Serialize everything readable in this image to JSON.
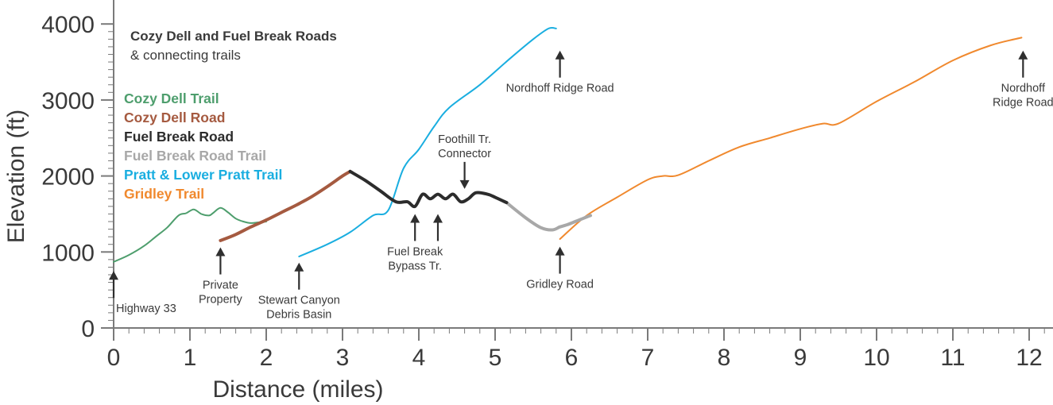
{
  "chart_data": {
    "type": "line",
    "title": "Cozy Dell and Fuel Break Roads",
    "subtitle": "& connecting trails",
    "xlabel": "Distance (miles)",
    "ylabel": "Elevation (ft)",
    "xlim": [
      0,
      12.3
    ],
    "ylim": [
      0,
      4000
    ],
    "xticks": [
      "0",
      "1",
      "2",
      "3",
      "4",
      "5",
      "6",
      "7",
      "8",
      "9",
      "10",
      "11",
      "12"
    ],
    "yticks": [
      "0",
      "1000",
      "2000",
      "3000",
      "4000"
    ],
    "grid": false,
    "legend_position": "top-left",
    "series": [
      {
        "name": "Cozy Dell Trail",
        "color": "#4e9e6d",
        "x": [
          0,
          0.2,
          0.4,
          0.55,
          0.7,
          0.85,
          0.95,
          1.05,
          1.15,
          1.25,
          1.3,
          1.4,
          1.5,
          1.6,
          1.7,
          1.8,
          1.9,
          2.0
        ],
        "y": [
          870,
          960,
          1080,
          1200,
          1320,
          1480,
          1510,
          1560,
          1500,
          1480,
          1510,
          1580,
          1520,
          1440,
          1400,
          1380,
          1390,
          1400
        ]
      },
      {
        "name": "Cozy Dell Road",
        "color": "#a55a40",
        "x": [
          1.4,
          1.6,
          1.8,
          2.0,
          2.2,
          2.4,
          2.6,
          2.8,
          3.0,
          3.1
        ],
        "y": [
          1150,
          1230,
          1330,
          1420,
          1520,
          1620,
          1730,
          1860,
          2000,
          2060
        ]
      },
      {
        "name": "Fuel Break Road",
        "color": "#2c2c2c",
        "x": [
          3.1,
          3.3,
          3.5,
          3.7,
          3.85,
          3.95,
          4.05,
          4.15,
          4.25,
          4.35,
          4.45,
          4.55,
          4.65,
          4.75,
          4.9,
          5.0,
          5.15
        ],
        "y": [
          2060,
          1940,
          1800,
          1660,
          1660,
          1600,
          1760,
          1700,
          1760,
          1700,
          1760,
          1660,
          1700,
          1780,
          1760,
          1720,
          1650
        ]
      },
      {
        "name": "Fuel Break Road Trail",
        "color": "#a8a8a8",
        "x": [
          5.15,
          5.4,
          5.6,
          5.75,
          5.85,
          5.95,
          6.05,
          6.15,
          6.25
        ],
        "y": [
          1650,
          1450,
          1320,
          1290,
          1330,
          1360,
          1400,
          1440,
          1480
        ]
      },
      {
        "name": "Pratt & Lower Pratt Trail",
        "color": "#1aaee0",
        "x": [
          2.43,
          2.8,
          3.1,
          3.4,
          3.6,
          3.8,
          4.0,
          4.2,
          4.4,
          4.8,
          5.2,
          5.5,
          5.7,
          5.8
        ],
        "y": [
          940,
          1100,
          1260,
          1480,
          1550,
          2100,
          2350,
          2650,
          2900,
          3200,
          3550,
          3800,
          3940,
          3940
        ]
      },
      {
        "name": "Gridley Trail",
        "color": "#f0892e",
        "x": [
          5.85,
          6.2,
          6.6,
          7.0,
          7.2,
          7.4,
          7.8,
          8.2,
          8.6,
          9.0,
          9.3,
          9.5,
          10.0,
          10.5,
          11.0,
          11.5,
          11.9
        ],
        "y": [
          1170,
          1480,
          1720,
          1950,
          2000,
          2010,
          2200,
          2380,
          2500,
          2620,
          2690,
          2690,
          2980,
          3240,
          3520,
          3720,
          3820
        ]
      }
    ],
    "annotations": [
      {
        "lines": [
          "Highway 33"
        ],
        "x": 0,
        "y": 750,
        "dir": "up",
        "align": "left"
      },
      {
        "lines": [
          "Private",
          "Property"
        ],
        "x": 1.4,
        "y": 1060,
        "dir": "up",
        "align": "center"
      },
      {
        "lines": [
          "Stewart Canyon",
          "Debris Basin"
        ],
        "x": 2.43,
        "y": 860,
        "dir": "up",
        "align": "center"
      },
      {
        "lines": [
          "Fuel Break",
          "Bypass Tr."
        ],
        "x": 3.95,
        "y": 1500,
        "dir": "up",
        "align": "center"
      },
      {
        "lines": [],
        "x": 4.25,
        "y": 1500,
        "dir": "up",
        "align": "center"
      },
      {
        "lines": [
          "Foothill Tr.",
          "Connector"
        ],
        "x": 4.6,
        "y": 1830,
        "dir": "down",
        "align": "center"
      },
      {
        "lines": [
          "Nordhoff Ridge Road"
        ],
        "x": 5.85,
        "y": 3650,
        "dir": "up",
        "align": "center"
      },
      {
        "lines": [
          "Gridley Road"
        ],
        "x": 5.85,
        "y": 1070,
        "dir": "up",
        "align": "center"
      },
      {
        "lines": [
          "Nordhoff",
          "Ridge Road"
        ],
        "x": 11.92,
        "y": 3650,
        "dir": "up",
        "align": "center"
      }
    ]
  }
}
